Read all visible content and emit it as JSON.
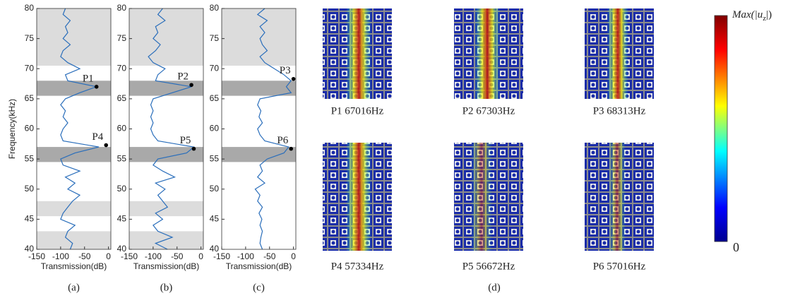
{
  "chart_data": [
    {
      "type": "line",
      "caption": "(a)",
      "xlabel": "Transmission(dB)",
      "ylabel": "Frequency(kHz)",
      "xlim": [
        -150,
        5
      ],
      "xticks": [
        -150,
        -100,
        -50,
        0
      ],
      "ylim": [
        40,
        80
      ],
      "yticks": [
        40,
        45,
        50,
        55,
        60,
        65,
        70,
        75,
        80
      ],
      "bands": [
        {
          "range": [
            70.5,
            80
          ],
          "color": "#dcdcdc"
        },
        {
          "range": [
            65.5,
            68
          ],
          "color": "#a9a9a9"
        },
        {
          "range": [
            54.5,
            57
          ],
          "color": "#a9a9a9"
        },
        {
          "range": [
            45.5,
            48
          ],
          "color": "#dcdcdc"
        },
        {
          "range": [
            40,
            43
          ],
          "color": "#dcdcdc"
        }
      ],
      "y": [
        40,
        41,
        42,
        43,
        44,
        45,
        46,
        47,
        48,
        49,
        50,
        51,
        52,
        53,
        54,
        55,
        56,
        57,
        58,
        59,
        60,
        61,
        62,
        63,
        64,
        65,
        66,
        67,
        68,
        69,
        70,
        71,
        72,
        73,
        74,
        75,
        76,
        77,
        78,
        79,
        80
      ],
      "series": [
        {
          "color": "#2a6ebb",
          "values": [
            -80,
            -75,
            -90,
            -85,
            -70,
            -100,
            -95,
            -85,
            -75,
            -60,
            -85,
            -70,
            -90,
            -60,
            -95,
            -100,
            -70,
            -20,
            -95,
            -100,
            -95,
            -85,
            -95,
            -90,
            -100,
            -90,
            -60,
            -25,
            -85,
            -90,
            -60,
            -85,
            -100,
            -95,
            -80,
            -95,
            -85,
            -90,
            -80,
            -95,
            -90
          ]
        }
      ],
      "points": [
        {
          "label": "P1",
          "x": -25,
          "y": 67
        },
        {
          "label": "P4",
          "x": -5,
          "y": 57.3
        }
      ]
    },
    {
      "type": "line",
      "caption": "(b)",
      "xlabel": "Transmission(dB)",
      "xlim": [
        -150,
        5
      ],
      "xticks": [
        -150,
        -100,
        -50,
        0
      ],
      "ylim": [
        40,
        80
      ],
      "yticks": [
        40,
        45,
        50,
        55,
        60,
        65,
        70,
        75,
        80
      ],
      "bands": [
        {
          "range": [
            70.5,
            80
          ],
          "color": "#dcdcdc"
        },
        {
          "range": [
            65.5,
            68
          ],
          "color": "#a9a9a9"
        },
        {
          "range": [
            54.5,
            57
          ],
          "color": "#a9a9a9"
        },
        {
          "range": [
            45.5,
            48
          ],
          "color": "#dcdcdc"
        },
        {
          "range": [
            40,
            43
          ],
          "color": "#dcdcdc"
        }
      ],
      "y": [
        40,
        41,
        42,
        43,
        44,
        45,
        46,
        47,
        48,
        49,
        50,
        51,
        52,
        53,
        54,
        55,
        56,
        57,
        58,
        59,
        60,
        61,
        62,
        63,
        64,
        65,
        66,
        67,
        68,
        69,
        70,
        71,
        72,
        73,
        74,
        75,
        76,
        77,
        78,
        79,
        80
      ],
      "series": [
        {
          "color": "#2a6ebb",
          "values": [
            -70,
            -95,
            -60,
            -90,
            -100,
            -80,
            -95,
            -70,
            -80,
            -90,
            -75,
            -95,
            -55,
            -80,
            -100,
            -90,
            -30,
            -15,
            -90,
            -100,
            -105,
            -100,
            -105,
            -100,
            -105,
            -100,
            -60,
            -20,
            -95,
            -90,
            -75,
            -100,
            -110,
            -95,
            -85,
            -100,
            -90,
            -95,
            -75,
            -90,
            -80
          ]
        }
      ],
      "points": [
        {
          "label": "P2",
          "x": -20,
          "y": 67.3
        },
        {
          "label": "P5",
          "x": -15,
          "y": 56.7
        }
      ]
    },
    {
      "type": "line",
      "caption": "(c)",
      "xlabel": "Transmission(dB)",
      "xlim": [
        -150,
        5
      ],
      "xticks": [
        -150,
        -100,
        -50,
        0
      ],
      "ylim": [
        40,
        80
      ],
      "yticks": [
        40,
        45,
        50,
        55,
        60,
        65,
        70,
        75,
        80
      ],
      "bands": [
        {
          "range": [
            70.5,
            80
          ],
          "color": "#dcdcdc"
        },
        {
          "range": [
            65.5,
            68
          ],
          "color": "#a9a9a9"
        },
        {
          "range": [
            54.5,
            57
          ],
          "color": "#a9a9a9"
        }
      ],
      "y": [
        40,
        41,
        42,
        43,
        44,
        45,
        46,
        47,
        48,
        49,
        50,
        51,
        52,
        53,
        54,
        55,
        56,
        57,
        58,
        59,
        60,
        61,
        62,
        63,
        64,
        65,
        66,
        67,
        68,
        69,
        70,
        71,
        72,
        73,
        74,
        75,
        76,
        77,
        78,
        79,
        80
      ],
      "series": [
        {
          "color": "#2a6ebb",
          "values": [
            -65,
            -70,
            -68,
            -65,
            -70,
            -66,
            -72,
            -65,
            -75,
            -70,
            -80,
            -60,
            -75,
            -65,
            -70,
            -55,
            -20,
            -10,
            -60,
            -70,
            -75,
            -65,
            -72,
            -68,
            -75,
            -70,
            -5,
            -15,
            -5,
            -20,
            -40,
            -60,
            -70,
            -55,
            -65,
            -70,
            -60,
            -70,
            -55,
            -75,
            -60
          ]
        }
      ],
      "points": [
        {
          "label": "P3",
          "x": 0,
          "y": 68.3
        },
        {
          "label": "P6",
          "x": -5,
          "y": 56.7
        }
      ]
    }
  ],
  "field_maps": {
    "caption": "(d)",
    "labels": [
      "P1 67016Hz",
      "P2 67303Hz",
      "P3 68313Hz",
      "P4 57334Hz",
      "P5 56672Hz",
      "P6 57016Hz"
    ]
  },
  "colorbar": {
    "title": "Max(|u",
    "subscript": "z",
    "title_end": "|)",
    "min_label": "0"
  }
}
